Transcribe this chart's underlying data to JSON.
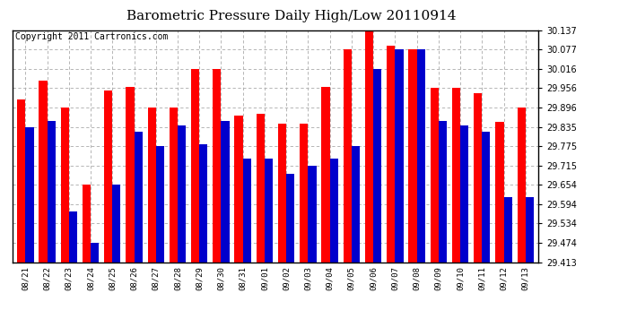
{
  "title": "Barometric Pressure Daily High/Low 20110914",
  "copyright": "Copyright 2011 Cartronics.com",
  "dates": [
    "08/21",
    "08/22",
    "08/23",
    "08/24",
    "08/25",
    "08/26",
    "08/27",
    "08/28",
    "08/29",
    "08/30",
    "08/31",
    "09/01",
    "09/02",
    "09/03",
    "09/04",
    "09/05",
    "09/06",
    "09/07",
    "09/08",
    "09/09",
    "09/10",
    "09/11",
    "09/12",
    "09/13"
  ],
  "highs": [
    29.92,
    29.98,
    29.896,
    29.655,
    29.95,
    29.96,
    29.896,
    29.896,
    30.016,
    30.016,
    29.87,
    29.875,
    29.845,
    29.845,
    29.96,
    30.077,
    30.137,
    30.09,
    30.077,
    29.958,
    29.958,
    29.94,
    29.85,
    29.896
  ],
  "lows": [
    29.835,
    29.855,
    29.57,
    29.474,
    29.655,
    29.82,
    29.775,
    29.84,
    29.78,
    29.855,
    29.735,
    29.735,
    29.69,
    29.715,
    29.735,
    29.775,
    30.016,
    30.077,
    30.077,
    29.855,
    29.84,
    29.82,
    29.615,
    29.615
  ],
  "high_color": "#ff0000",
  "low_color": "#0000cc",
  "background_color": "#ffffff",
  "plot_bg_color": "#ffffff",
  "grid_color": "#aaaaaa",
  "ylim_min": 29.413,
  "ylim_max": 30.137,
  "yticks": [
    29.413,
    29.474,
    29.534,
    29.594,
    29.654,
    29.715,
    29.775,
    29.835,
    29.896,
    29.956,
    30.016,
    30.077,
    30.137
  ],
  "title_fontsize": 11,
  "copyright_fontsize": 7,
  "bar_width": 0.38
}
